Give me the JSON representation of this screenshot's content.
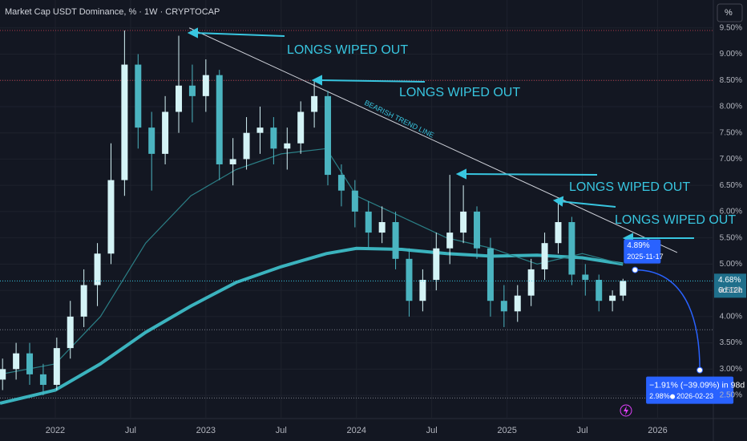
{
  "chart_data": {
    "type": "candlestick",
    "title": "Market Cap USDT Dominance, % · 1W · CRYPTOCAP",
    "unit_button": "%",
    "ylim": [
      2.0,
      10.0
    ],
    "yticks": [
      {
        "value": 9.5,
        "label": "9.50%"
      },
      {
        "value": 9.0,
        "label": "9.00%"
      },
      {
        "value": 8.5,
        "label": "8.50%"
      },
      {
        "value": 8.0,
        "label": "8.00%"
      },
      {
        "value": 7.5,
        "label": "7.50%"
      },
      {
        "value": 7.0,
        "label": "7.00%"
      },
      {
        "value": 6.5,
        "label": "6.50%"
      },
      {
        "value": 6.0,
        "label": "6.00%"
      },
      {
        "value": 5.5,
        "label": "5.50%"
      },
      {
        "value": 5.0,
        "label": "5.00%"
      },
      {
        "value": 4.5,
        "label": "4.50%"
      },
      {
        "value": 4.0,
        "label": "4.00%"
      },
      {
        "value": 3.5,
        "label": "3.50%"
      },
      {
        "value": 3.0,
        "label": "3.00%"
      },
      {
        "value": 2.5,
        "label": "2.50%"
      }
    ],
    "xlim": [
      2021.633,
      2026.37
    ],
    "xticks": [
      {
        "value": 2022,
        "label": "2022"
      },
      {
        "value": 2022.5,
        "label": "Jul"
      },
      {
        "value": 2023,
        "label": "2023"
      },
      {
        "value": 2023.5,
        "label": "Jul"
      },
      {
        "value": 2024,
        "label": "2024"
      },
      {
        "value": 2024.5,
        "label": "Jul"
      },
      {
        "value": 2025,
        "label": "2025"
      },
      {
        "value": 2025.5,
        "label": "Jul"
      },
      {
        "value": 2026,
        "label": "2026"
      }
    ],
    "up_color": "#d4f3f6",
    "down_color": "#4bb4c0",
    "candles": {
      "x": [
        2021.65,
        2021.74,
        2021.83,
        2021.92,
        2022.01,
        2022.1,
        2022.19,
        2022.28,
        2022.37,
        2022.46,
        2022.55,
        2022.64,
        2022.73,
        2022.82,
        2022.91,
        2023.0,
        2023.09,
        2023.18,
        2023.27,
        2023.36,
        2023.45,
        2023.54,
        2023.63,
        2023.72,
        2023.81,
        2023.9,
        2023.99,
        2024.08,
        2024.17,
        2024.26,
        2024.35,
        2024.44,
        2024.53,
        2024.62,
        2024.71,
        2024.8,
        2024.89,
        2024.98,
        2025.07,
        2025.16,
        2025.25,
        2025.34,
        2025.43,
        2025.52,
        2025.61,
        2025.7,
        2025.77
      ],
      "open": [
        2.8,
        3.0,
        3.3,
        2.9,
        2.7,
        3.4,
        4.0,
        4.6,
        5.2,
        6.6,
        8.8,
        7.6,
        7.1,
        7.9,
        8.4,
        8.2,
        8.6,
        6.9,
        7.0,
        7.5,
        7.6,
        7.2,
        7.3,
        7.9,
        8.2,
        6.7,
        6.4,
        6.0,
        5.6,
        5.8,
        5.1,
        4.3,
        4.7,
        5.3,
        5.6,
        6.0,
        5.3,
        4.3,
        4.1,
        4.4,
        4.9,
        5.4,
        5.8,
        4.8,
        4.7,
        4.3,
        4.4
      ],
      "high": [
        3.2,
        3.5,
        3.5,
        3.1,
        3.6,
        4.3,
        4.9,
        5.4,
        7.3,
        9.45,
        9.0,
        7.9,
        8.2,
        9.35,
        8.8,
        8.9,
        8.7,
        7.4,
        7.8,
        8.0,
        7.8,
        7.6,
        8.1,
        8.5,
        8.3,
        6.9,
        6.6,
        6.2,
        6.1,
        6.0,
        5.3,
        4.9,
        5.6,
        6.7,
        6.5,
        6.1,
        5.5,
        4.6,
        4.6,
        5.1,
        5.6,
        6.2,
        5.9,
        5.0,
        4.8,
        4.5,
        4.72
      ],
      "low": [
        2.6,
        2.8,
        2.7,
        2.5,
        2.6,
        3.2,
        3.8,
        4.2,
        5.0,
        6.3,
        7.2,
        6.4,
        6.9,
        7.5,
        7.7,
        7.9,
        6.6,
        6.5,
        6.8,
        7.1,
        6.9,
        6.8,
        7.1,
        7.6,
        6.5,
        6.1,
        5.7,
        5.3,
        5.4,
        4.9,
        4.0,
        4.1,
        4.5,
        5.0,
        5.4,
        5.1,
        4.0,
        3.8,
        3.9,
        4.2,
        4.7,
        5.2,
        4.6,
        4.4,
        4.1,
        4.1,
        4.3
      ],
      "close": [
        3.0,
        3.3,
        2.9,
        2.7,
        3.4,
        4.0,
        4.6,
        5.2,
        6.6,
        8.8,
        7.6,
        7.1,
        7.9,
        8.4,
        8.2,
        8.6,
        6.9,
        7.0,
        7.5,
        7.6,
        7.2,
        7.3,
        7.9,
        8.2,
        6.7,
        6.4,
        6.0,
        5.6,
        5.8,
        5.1,
        4.3,
        4.7,
        5.3,
        5.6,
        6.0,
        5.3,
        4.3,
        4.1,
        4.4,
        4.9,
        5.4,
        5.8,
        4.8,
        4.7,
        4.3,
        4.4,
        4.68
      ]
    },
    "lines": [
      {
        "color": "#3bb3be",
        "width": 4,
        "x": [
          2021.633,
          2022.0,
          2022.3,
          2022.6,
          2022.9,
          2023.2,
          2023.5,
          2023.8,
          2024.0,
          2024.3,
          2024.6,
          2024.9,
          2025.2,
          2025.5,
          2025.77
        ],
        "values": [
          2.35,
          2.6,
          3.1,
          3.7,
          4.2,
          4.65,
          4.95,
          5.2,
          5.3,
          5.28,
          5.2,
          5.15,
          5.17,
          5.12,
          5.0
        ]
      },
      {
        "color": "#2b7f86",
        "width": 1.2,
        "x": [
          2021.633,
          2022.0,
          2022.3,
          2022.6,
          2022.9,
          2023.2,
          2023.5,
          2023.8,
          2024.0,
          2024.3,
          2024.6,
          2024.9,
          2025.2,
          2025.5,
          2025.77
        ],
        "values": [
          2.9,
          3.1,
          4.0,
          5.4,
          6.3,
          6.8,
          7.1,
          7.2,
          6.3,
          5.9,
          5.5,
          5.3,
          5.0,
          5.2,
          5.0
        ]
      },
      {
        "color": "#d1d4dc",
        "width": 1,
        "x": [
          2022.89,
          2026.13
        ],
        "values": [
          9.5,
          5.22
        ]
      }
    ],
    "ref_lines": [
      {
        "value": 9.45,
        "color": "#b2394a"
      },
      {
        "value": 8.5,
        "color": "#b2394a"
      },
      {
        "value": 3.75,
        "color": "#787b86"
      },
      {
        "value": 2.45,
        "color": "#787b86"
      }
    ],
    "annotations": [
      "LONGS WIPED OUT",
      "LONGS WIPED OUT",
      "LONGS WIPED OUT",
      "LONGS WIPED OUT"
    ],
    "trend_label": "BEARISH TREND LINE",
    "last_price": {
      "value": 4.68,
      "label": "4.68%",
      "countdown": "6d 12h"
    },
    "marker": {
      "value": 4.89,
      "label": "4.89%",
      "date": "2025-11-17",
      "x": 2025.85
    },
    "projection": {
      "change": "−1.91% (−39.09%) in 98d",
      "value": 2.98,
      "label": "2.98%",
      "date": "2026-02-23",
      "x": 2026.28
    }
  }
}
